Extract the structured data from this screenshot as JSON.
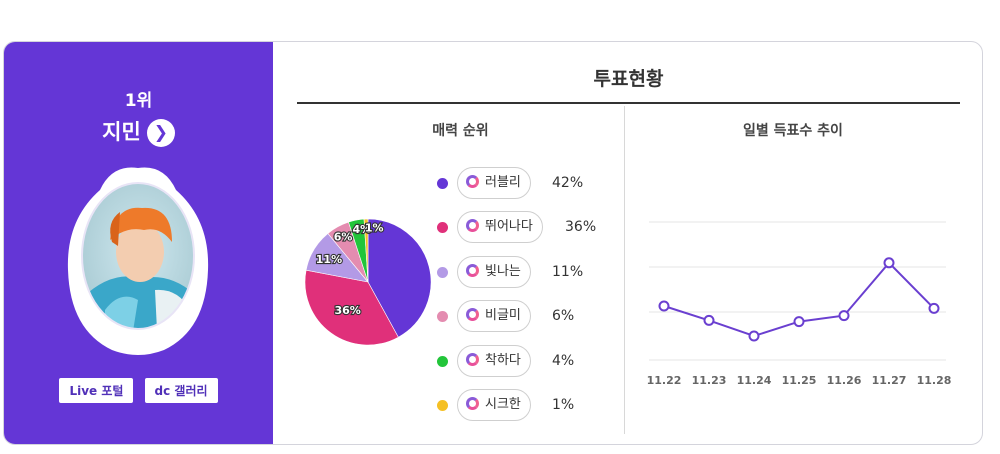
{
  "profile": {
    "rank": "1위",
    "name": "지민",
    "chevron": "❯",
    "buttons": [
      {
        "label": "Live 포털"
      },
      {
        "label": "dc 갤러리"
      }
    ]
  },
  "header": {
    "title": "투표현황"
  },
  "charm": {
    "title": "매력 순위",
    "items": [
      {
        "label": "러블리",
        "pct": "42%",
        "color": "#6436d6"
      },
      {
        "label": "뛰어나다",
        "pct": "36%",
        "color": "#e0307a"
      },
      {
        "label": "빛나는",
        "pct": "11%",
        "color": "#b39ae6"
      },
      {
        "label": "비글미",
        "pct": "6%",
        "color": "#e48cb0"
      },
      {
        "label": "착하다",
        "pct": "4%",
        "color": "#22c53a"
      },
      {
        "label": "시크한",
        "pct": "1%",
        "color": "#f5c024"
      }
    ]
  },
  "daily": {
    "title": "일별 득표수 추이"
  },
  "chart_data": [
    {
      "type": "pie",
      "categories": [
        "러블리",
        "뛰어나다",
        "빛나는",
        "비글미",
        "착하다",
        "시크한"
      ],
      "values": [
        42,
        36,
        11,
        6,
        4,
        1
      ],
      "labels": [
        "",
        "36%",
        "11%",
        "6%",
        "4%",
        "1%"
      ],
      "colors": [
        "#6436d6",
        "#e0307a",
        "#b39ae6",
        "#e48cb0",
        "#22c53a",
        "#f5c024"
      ]
    },
    {
      "type": "line",
      "categories": [
        "11.22",
        "11.23",
        "11.24",
        "11.25",
        "11.26",
        "11.27",
        "11.28"
      ],
      "values": [
        30,
        18,
        5,
        17,
        22,
        66,
        28
      ],
      "ylim": [
        -15,
        100
      ],
      "grid": true,
      "color": "#6a3fd0"
    }
  ]
}
